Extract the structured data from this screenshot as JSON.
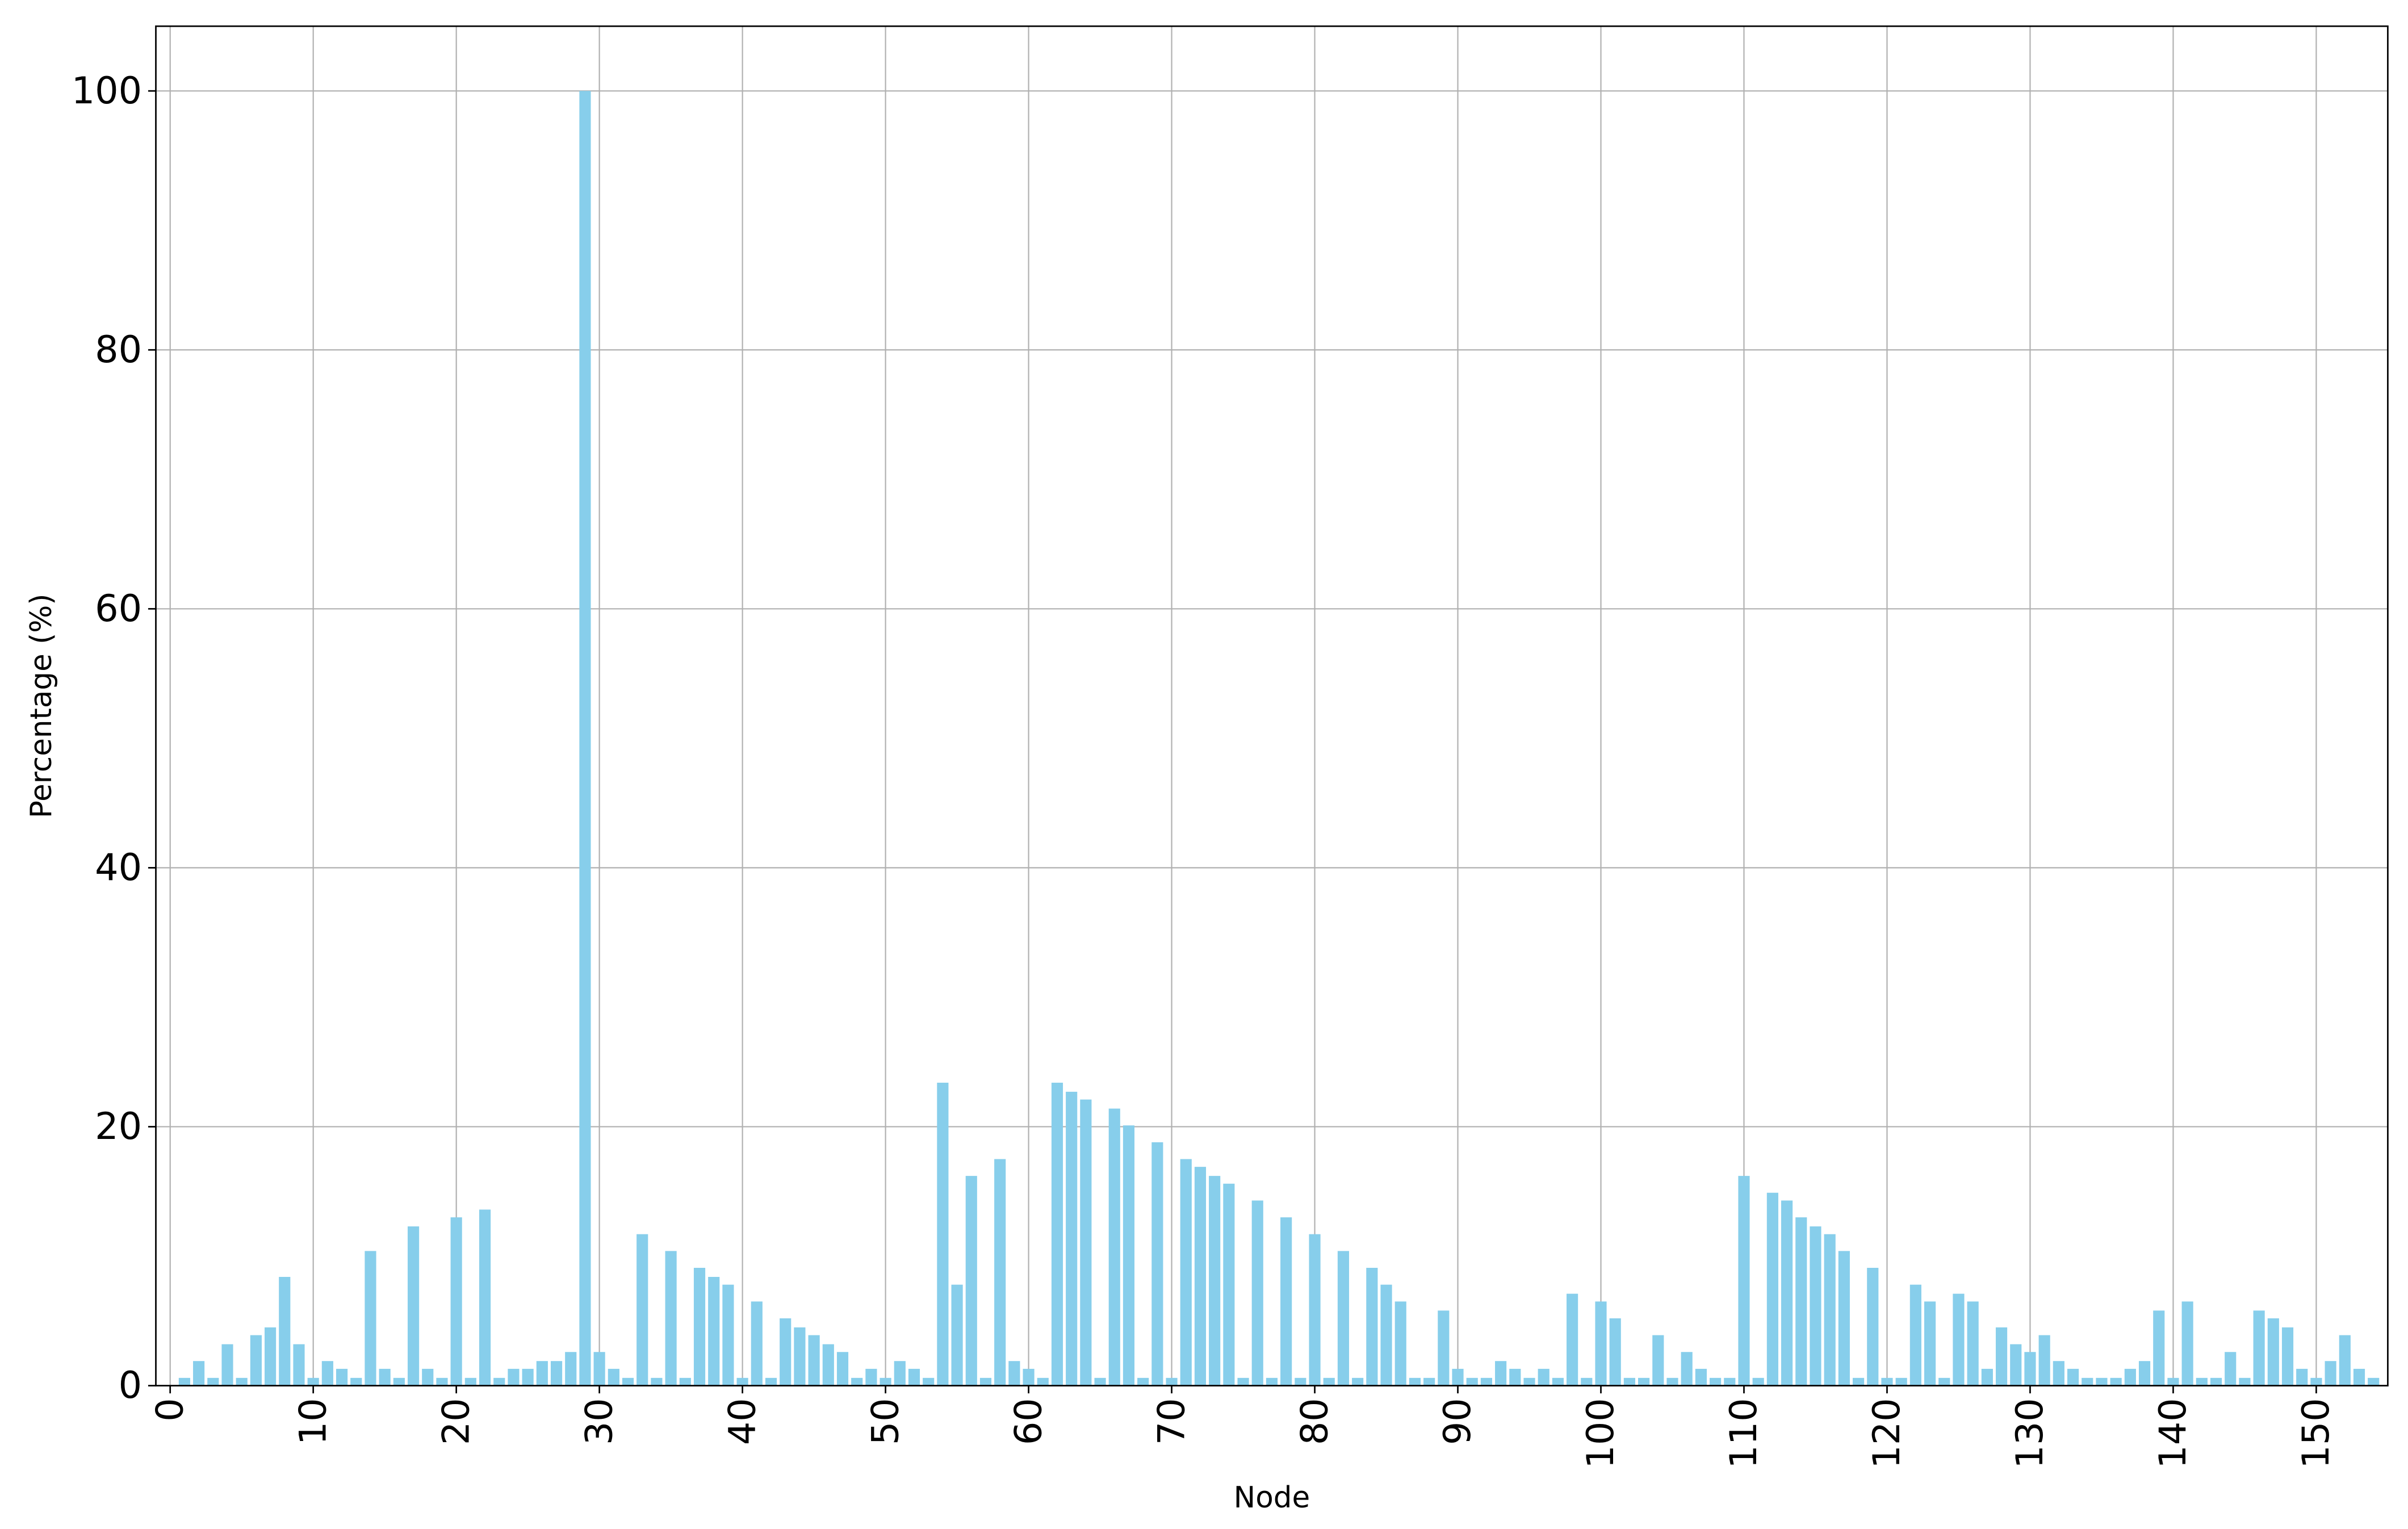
{
  "chart_data": {
    "type": "bar",
    "x": [
      1,
      2,
      3,
      4,
      5,
      6,
      7,
      8,
      9,
      10,
      11,
      12,
      13,
      14,
      15,
      16,
      17,
      18,
      19,
      20,
      21,
      22,
      23,
      24,
      25,
      26,
      27,
      28,
      29,
      30,
      31,
      32,
      33,
      34,
      35,
      36,
      37,
      38,
      39,
      40,
      41,
      42,
      43,
      44,
      45,
      46,
      47,
      48,
      49,
      50,
      51,
      52,
      53,
      54,
      55,
      56,
      57,
      58,
      59,
      60,
      61,
      62,
      63,
      64,
      65,
      66,
      67,
      68,
      69,
      70,
      71,
      72,
      73,
      74,
      75,
      76,
      77,
      78,
      79,
      80,
      81,
      82,
      83,
      84,
      85,
      86,
      87,
      88,
      89,
      90,
      91,
      92,
      93,
      94,
      95,
      96,
      97,
      98,
      99,
      100,
      101,
      102,
      103,
      104,
      105,
      106,
      107,
      108,
      109,
      110,
      111,
      112,
      113,
      114,
      115,
      116,
      117,
      118,
      119,
      120,
      121,
      122,
      123,
      124,
      125,
      126,
      127,
      128,
      129,
      130,
      131,
      132,
      133,
      134,
      135,
      136,
      137,
      138,
      139,
      140,
      141,
      142,
      143,
      144,
      145,
      146,
      147,
      148,
      149,
      150,
      151,
      152,
      153,
      154
    ],
    "values": [
      0.6,
      1.9,
      0.6,
      3.2,
      0.6,
      3.9,
      4.5,
      8.4,
      3.2,
      0.6,
      1.9,
      1.3,
      0.6,
      10.4,
      1.3,
      0.6,
      12.3,
      1.3,
      0.6,
      13.0,
      0.6,
      13.6,
      0.6,
      1.3,
      1.3,
      1.9,
      1.9,
      2.6,
      100,
      2.6,
      1.3,
      0.6,
      11.7,
      0.6,
      10.4,
      0.6,
      9.1,
      8.4,
      7.8,
      0.6,
      6.5,
      0.6,
      5.2,
      4.5,
      3.9,
      3.2,
      2.6,
      0.6,
      1.3,
      0.6,
      1.9,
      1.3,
      0.6,
      23.4,
      7.8,
      16.2,
      0.6,
      17.5,
      1.9,
      1.3,
      0.6,
      23.4,
      22.7,
      22.1,
      0.6,
      21.4,
      20.1,
      0.6,
      18.8,
      0.6,
      17.5,
      16.9,
      16.2,
      15.6,
      0.6,
      14.3,
      0.6,
      13.0,
      0.6,
      11.7,
      0.6,
      10.4,
      0.6,
      9.1,
      7.8,
      6.5,
      0.6,
      0.6,
      5.8,
      1.3,
      0.6,
      0.6,
      1.9,
      1.3,
      0.6,
      1.3,
      0.6,
      7.1,
      0.6,
      6.5,
      5.2,
      0.6,
      0.6,
      3.9,
      0.6,
      2.6,
      1.3,
      0.6,
      0.6,
      16.2,
      0.6,
      14.9,
      14.3,
      13.0,
      12.3,
      11.7,
      10.4,
      0.6,
      9.1,
      0.6,
      0.6,
      7.8,
      6.5,
      0.6,
      7.1,
      6.5,
      1.3,
      4.5,
      3.2,
      2.6,
      3.9,
      1.9,
      1.3,
      0.6,
      0.6,
      0.6,
      1.3,
      1.9,
      5.8,
      0.6,
      6.5,
      0.6,
      0.6,
      2.6,
      0.6,
      5.8,
      5.2,
      4.5,
      1.3,
      0.6,
      1.9,
      3.9,
      1.3,
      0.6
    ],
    "color": "#87ceeb",
    "x_label": "Node",
    "y_label": "Percentage (%)",
    "xlim": [
      -1,
      155
    ],
    "xticks": [
      0,
      10,
      20,
      30,
      40,
      50,
      60,
      70,
      80,
      90,
      100,
      110,
      120,
      130,
      140,
      150
    ],
    "ylim": [
      0,
      105
    ],
    "yticks": [
      0,
      20,
      40,
      60,
      80,
      100
    ],
    "grid": true
  }
}
